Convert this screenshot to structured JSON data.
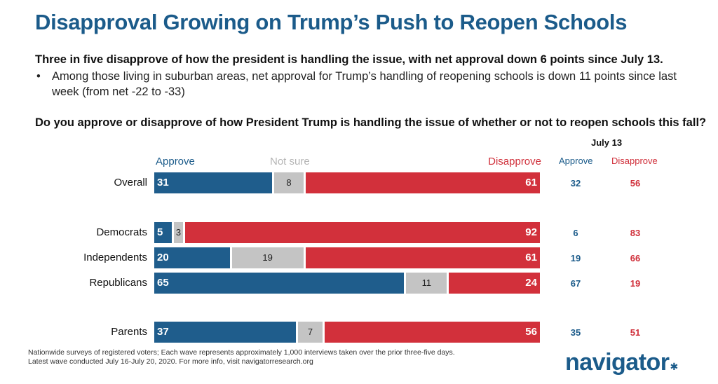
{
  "title": "Disapproval Growing on Trump’s Push to Reopen Schools",
  "subtitle": "Three in five disapprove of how the president is handling the issue, with net approval down 6 points since July 13.",
  "bullet": "Among those living in suburban areas, net approval for Trump’s handling of reopening schools is down 11 points since last week (from net -22 to -33)",
  "question": "Do you approve or disapprove of how President Trump is handling the issue of whether or not to reopen schools this fall?",
  "footnote_line1": "Nationwide surveys of registered voters; Each wave represents approximately 1,000 interviews taken over the prior three-five days.",
  "footnote_line2": "Latest wave conducted July 16-July 20, 2020. For more info, visit navigatorresearch.org",
  "logo_text": "navigator",
  "colors": {
    "approve": "#1f5d8c",
    "not_sure": "#c4c4c4",
    "disapprove": "#d2303b"
  },
  "chart_data": {
    "type": "bar",
    "orientation": "horizontal",
    "stacked": true,
    "categories": [
      "Overall",
      "Democrats",
      "Independents",
      "Republicans",
      "Parents"
    ],
    "series": [
      {
        "name": "Approve",
        "values": [
          31,
          5,
          20,
          65,
          37
        ]
      },
      {
        "name": "Not sure",
        "values": [
          8,
          3,
          19,
          11,
          7
        ]
      },
      {
        "name": "Disapprove",
        "values": [
          61,
          92,
          61,
          24,
          56
        ]
      }
    ],
    "prior_wave": {
      "label": "July 13",
      "approve_label": "Approve",
      "disapprove_label": "Disapprove",
      "approve": [
        32,
        6,
        19,
        67,
        35
      ],
      "disapprove": [
        56,
        83,
        66,
        19,
        51
      ]
    },
    "xlim": [
      0,
      100
    ]
  }
}
